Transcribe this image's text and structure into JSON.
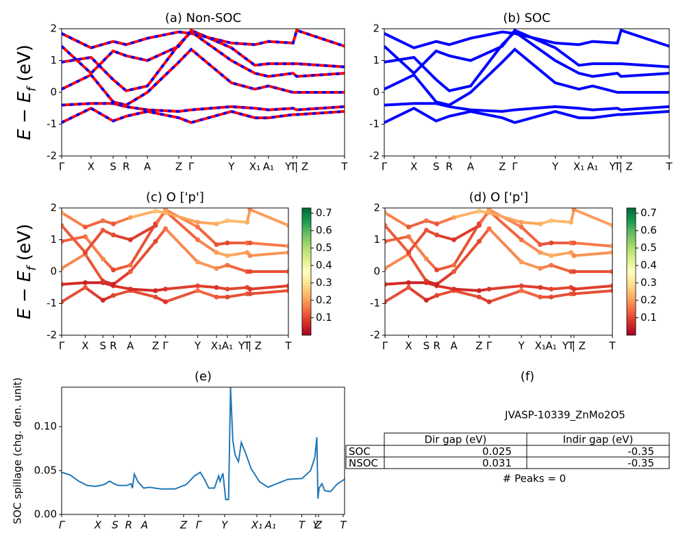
{
  "chart_data": [
    {
      "type": "line",
      "title": "(a) Non-SOC",
      "ylabel": [
        "E − E",
        "f",
        " (eV)"
      ],
      "color": "red",
      "dash_color": "blue",
      "xlim": [
        0,
        100
      ],
      "ylim": [
        -2,
        2
      ],
      "yticks": [
        -2,
        -1,
        0,
        1,
        2
      ],
      "xticks": [
        {
          "value": 0,
          "label": "Γ"
        },
        {
          "value": 10.4,
          "label": "X"
        },
        {
          "value": 18.2,
          "label": "S"
        },
        {
          "value": 22.8,
          "label": "R"
        },
        {
          "value": 30.3,
          "label": "A"
        },
        {
          "value": 41.4,
          "label": "Z"
        },
        {
          "value": 45.8,
          "label": "Γ"
        },
        {
          "value": 60.0,
          "label": "Y"
        },
        {
          "value": 68.3,
          "label": "X₁"
        },
        {
          "value": 73.1,
          "label": "A₁"
        },
        {
          "value": 81.8,
          "label": "T"
        },
        {
          "value": 83.1,
          "label": "Y | Z"
        },
        {
          "value": 100,
          "label": "T"
        }
      ],
      "x": [
        0,
        10.4,
        18.2,
        22.8,
        30.3,
        41.4,
        45.8,
        60.0,
        68.3,
        73.1,
        81.8,
        83.1,
        100
      ],
      "series": [
        {
          "values": [
            -0.95,
            -0.5,
            -0.9,
            -0.75,
            -0.6,
            -0.8,
            -0.95,
            -0.6,
            -0.8,
            -0.8,
            -0.7,
            -0.7,
            -0.6
          ]
        },
        {
          "values": [
            -0.4,
            -0.35,
            -0.35,
            -0.45,
            -0.55,
            -0.6,
            -0.55,
            -0.45,
            -0.5,
            -0.55,
            -0.5,
            -0.55,
            -0.45
          ]
        },
        {
          "values": [
            0.1,
            0.55,
            -0.3,
            -0.4,
            0.0,
            0.95,
            1.35,
            0.3,
            0.1,
            0.2,
            0.0,
            0.0,
            0.0
          ]
        },
        {
          "values": [
            0.95,
            1.1,
            0.4,
            0.05,
            0.2,
            1.5,
            1.9,
            1.0,
            0.6,
            0.5,
            0.6,
            0.5,
            0.6
          ]
        },
        {
          "values": [
            1.45,
            0.6,
            1.3,
            1.15,
            1.0,
            1.45,
            1.95,
            1.4,
            0.85,
            0.9,
            0.9,
            0.9,
            0.8
          ]
        },
        {
          "values": [
            1.85,
            1.4,
            1.6,
            1.5,
            1.7,
            1.9,
            1.85,
            1.55,
            1.5,
            1.6,
            1.55,
            1.95,
            1.45
          ]
        }
      ]
    },
    {
      "type": "line",
      "title": "(b) SOC",
      "color": "blue",
      "xlim": [
        0,
        100
      ],
      "ylim": [
        -2,
        2
      ],
      "yticks": [
        -2,
        -1,
        0,
        1,
        2
      ],
      "xticks": [
        {
          "value": 0,
          "label": "Γ"
        },
        {
          "value": 10.4,
          "label": "X"
        },
        {
          "value": 18.2,
          "label": "S"
        },
        {
          "value": 22.8,
          "label": "R"
        },
        {
          "value": 30.3,
          "label": "A"
        },
        {
          "value": 41.4,
          "label": "Z"
        },
        {
          "value": 45.8,
          "label": "Γ"
        },
        {
          "value": 60.0,
          "label": "Y"
        },
        {
          "value": 68.3,
          "label": "X₁"
        },
        {
          "value": 73.1,
          "label": "A₁"
        },
        {
          "value": 81.8,
          "label": "T"
        },
        {
          "value": 83.1,
          "label": "Y | Z"
        },
        {
          "value": 100,
          "label": "T"
        }
      ],
      "x": [
        0,
        10.4,
        18.2,
        22.8,
        30.3,
        41.4,
        45.8,
        60.0,
        68.3,
        73.1,
        81.8,
        83.1,
        100
      ],
      "series": [
        {
          "values": [
            -0.95,
            -0.5,
            -0.9,
            -0.75,
            -0.6,
            -0.8,
            -0.95,
            -0.6,
            -0.8,
            -0.8,
            -0.7,
            -0.7,
            -0.6
          ]
        },
        {
          "values": [
            -0.4,
            -0.35,
            -0.35,
            -0.45,
            -0.55,
            -0.6,
            -0.55,
            -0.45,
            -0.5,
            -0.55,
            -0.5,
            -0.55,
            -0.45
          ]
        },
        {
          "values": [
            0.1,
            0.55,
            -0.3,
            -0.4,
            0.0,
            0.95,
            1.35,
            0.3,
            0.1,
            0.2,
            0.0,
            0.0,
            0.0
          ]
        },
        {
          "values": [
            0.95,
            1.1,
            0.4,
            0.05,
            0.2,
            1.5,
            1.9,
            1.0,
            0.6,
            0.5,
            0.6,
            0.5,
            0.6
          ]
        },
        {
          "values": [
            1.45,
            0.6,
            1.3,
            1.15,
            1.0,
            1.45,
            1.95,
            1.4,
            0.85,
            0.9,
            0.9,
            0.9,
            0.8
          ]
        },
        {
          "values": [
            1.85,
            1.4,
            1.6,
            1.5,
            1.7,
            1.9,
            1.85,
            1.55,
            1.5,
            1.6,
            1.55,
            1.95,
            1.45
          ]
        }
      ]
    },
    {
      "type": "scatter",
      "title": "(c)  O ['p']",
      "ylabel": [
        "E − E",
        "f",
        " (eV)"
      ],
      "colormap": "RdYlGn",
      "clim": [
        0,
        0.73
      ],
      "cticks": [
        0.1,
        0.2,
        0.3,
        0.4,
        0.5,
        0.6,
        0.7
      ],
      "xlim": [
        0,
        100
      ],
      "ylim": [
        -2,
        2
      ],
      "yticks": [
        -2,
        -1,
        0,
        1,
        2
      ],
      "xticks": [
        {
          "value": 0,
          "label": "Γ"
        },
        {
          "value": 10.4,
          "label": "X"
        },
        {
          "value": 18.2,
          "label": "S"
        },
        {
          "value": 22.8,
          "label": "R"
        },
        {
          "value": 30.3,
          "label": "A"
        },
        {
          "value": 41.4,
          "label": "Z"
        },
        {
          "value": 45.8,
          "label": "Γ"
        },
        {
          "value": 60.0,
          "label": "Y"
        },
        {
          "value": 68.3,
          "label": "X₁"
        },
        {
          "value": 73.1,
          "label": "A₁"
        },
        {
          "value": 81.8,
          "label": "T"
        },
        {
          "value": 83.1,
          "label": "Y | Z"
        },
        {
          "value": 100,
          "label": "T"
        }
      ],
      "x": [
        0,
        10.4,
        18.2,
        22.8,
        30.3,
        41.4,
        45.8,
        60.0,
        68.3,
        73.1,
        81.8,
        83.1,
        100
      ],
      "series": [
        {
          "values": [
            -0.95,
            -0.5,
            -0.9,
            -0.75,
            -0.6,
            -0.8,
            -0.95,
            -0.6,
            -0.8,
            -0.8,
            -0.7,
            -0.7,
            -0.6
          ],
          "weights": [
            0.1,
            0.12,
            0.06,
            0.1,
            0.12,
            0.1,
            0.08,
            0.15,
            0.12,
            0.1,
            0.12,
            0.1,
            0.12
          ]
        },
        {
          "values": [
            -0.4,
            -0.35,
            -0.35,
            -0.45,
            -0.55,
            -0.6,
            -0.55,
            -0.45,
            -0.5,
            -0.55,
            -0.5,
            -0.55,
            -0.45
          ],
          "weights": [
            0.08,
            0.05,
            0.06,
            0.08,
            0.07,
            0.06,
            0.08,
            0.1,
            0.08,
            0.1,
            0.1,
            0.08,
            0.1
          ]
        },
        {
          "values": [
            0.1,
            0.55,
            -0.3,
            -0.4,
            0.0,
            0.95,
            1.35,
            0.3,
            0.1,
            0.2,
            0.0,
            0.0,
            0.0
          ],
          "weights": [
            0.2,
            0.15,
            0.08,
            0.05,
            0.12,
            0.1,
            0.15,
            0.2,
            0.18,
            0.15,
            0.12,
            0.1,
            0.12
          ]
        },
        {
          "values": [
            0.95,
            1.1,
            0.4,
            0.05,
            0.2,
            1.5,
            1.9,
            1.0,
            0.6,
            0.5,
            0.6,
            0.5,
            0.6
          ],
          "weights": [
            0.12,
            0.15,
            0.18,
            0.1,
            0.15,
            0.08,
            0.12,
            0.15,
            0.2,
            0.22,
            0.2,
            0.18,
            0.2
          ]
        },
        {
          "values": [
            1.45,
            0.6,
            1.3,
            1.15,
            1.0,
            1.45,
            1.95,
            1.4,
            0.85,
            0.9,
            0.9,
            0.9,
            0.8
          ],
          "weights": [
            0.15,
            0.1,
            0.12,
            0.1,
            0.08,
            0.1,
            0.2,
            0.15,
            0.12,
            0.1,
            0.15,
            0.12,
            0.2
          ]
        },
        {
          "values": [
            1.85,
            1.4,
            1.6,
            1.5,
            1.7,
            1.9,
            1.85,
            1.55,
            1.5,
            1.6,
            1.55,
            1.95,
            1.45
          ],
          "weights": [
            0.22,
            0.12,
            0.15,
            0.12,
            0.2,
            0.25,
            0.22,
            0.2,
            0.22,
            0.25,
            0.22,
            0.18,
            0.22
          ]
        }
      ]
    },
    {
      "type": "scatter",
      "title": "(d) O ['p']",
      "colormap": "RdYlGn",
      "clim": [
        0,
        0.73
      ],
      "cticks": [
        0.1,
        0.2,
        0.3,
        0.4,
        0.5,
        0.6,
        0.7
      ],
      "xlim": [
        0,
        100
      ],
      "ylim": [
        -2,
        2
      ],
      "yticks": [
        -2,
        -1,
        0,
        1,
        2
      ],
      "xticks": [
        {
          "value": 0,
          "label": "Γ"
        },
        {
          "value": 10.4,
          "label": "X"
        },
        {
          "value": 18.2,
          "label": "S"
        },
        {
          "value": 22.8,
          "label": "R"
        },
        {
          "value": 30.3,
          "label": "A"
        },
        {
          "value": 41.4,
          "label": "Z"
        },
        {
          "value": 45.8,
          "label": "Γ"
        },
        {
          "value": 60.0,
          "label": "Y"
        },
        {
          "value": 68.3,
          "label": "X₁"
        },
        {
          "value": 73.1,
          "label": "A₁"
        },
        {
          "value": 81.8,
          "label": "T"
        },
        {
          "value": 83.1,
          "label": "Y | Z"
        },
        {
          "value": 100,
          "label": "T"
        }
      ],
      "x": [
        0,
        10.4,
        18.2,
        22.8,
        30.3,
        41.4,
        45.8,
        60.0,
        68.3,
        73.1,
        81.8,
        83.1,
        100
      ],
      "series": [
        {
          "values": [
            -0.95,
            -0.5,
            -0.9,
            -0.75,
            -0.6,
            -0.8,
            -0.95,
            -0.6,
            -0.8,
            -0.8,
            -0.7,
            -0.7,
            -0.6
          ],
          "weights": [
            0.1,
            0.12,
            0.06,
            0.1,
            0.12,
            0.1,
            0.08,
            0.15,
            0.12,
            0.1,
            0.12,
            0.1,
            0.12
          ]
        },
        {
          "values": [
            -0.4,
            -0.35,
            -0.35,
            -0.45,
            -0.55,
            -0.6,
            -0.55,
            -0.45,
            -0.5,
            -0.55,
            -0.5,
            -0.55,
            -0.45
          ],
          "weights": [
            0.08,
            0.05,
            0.06,
            0.08,
            0.07,
            0.06,
            0.08,
            0.1,
            0.08,
            0.1,
            0.1,
            0.08,
            0.1
          ]
        },
        {
          "values": [
            0.1,
            0.55,
            -0.3,
            -0.4,
            0.0,
            0.95,
            1.35,
            0.3,
            0.1,
            0.2,
            0.0,
            0.0,
            0.0
          ],
          "weights": [
            0.2,
            0.15,
            0.08,
            0.05,
            0.12,
            0.1,
            0.15,
            0.2,
            0.18,
            0.15,
            0.12,
            0.1,
            0.12
          ]
        },
        {
          "values": [
            0.95,
            1.1,
            0.4,
            0.05,
            0.2,
            1.5,
            1.9,
            1.0,
            0.6,
            0.5,
            0.6,
            0.5,
            0.6
          ],
          "weights": [
            0.12,
            0.15,
            0.18,
            0.1,
            0.15,
            0.08,
            0.12,
            0.15,
            0.2,
            0.22,
            0.2,
            0.18,
            0.2
          ]
        },
        {
          "values": [
            1.45,
            0.6,
            1.3,
            1.15,
            1.0,
            1.45,
            1.95,
            1.4,
            0.85,
            0.9,
            0.9,
            0.9,
            0.8
          ],
          "weights": [
            0.15,
            0.1,
            0.12,
            0.1,
            0.08,
            0.1,
            0.2,
            0.15,
            0.12,
            0.1,
            0.15,
            0.12,
            0.2
          ]
        },
        {
          "values": [
            1.85,
            1.4,
            1.6,
            1.5,
            1.7,
            1.9,
            1.85,
            1.55,
            1.5,
            1.6,
            1.55,
            1.95,
            1.45
          ],
          "weights": [
            0.22,
            0.12,
            0.15,
            0.12,
            0.2,
            0.25,
            0.22,
            0.2,
            0.22,
            0.25,
            0.22,
            0.18,
            0.22
          ]
        }
      ]
    },
    {
      "type": "line",
      "title": "(e)",
      "ylabel": "SOC spillage (chg. den. unit)",
      "color": "#1f77b4",
      "italic_xticks": true,
      "xlim": [
        0,
        100
      ],
      "ylim": [
        0,
        0.145
      ],
      "yticks": [
        {
          "value": 0,
          "label": "0.00"
        },
        {
          "value": 0.05,
          "label": "0.05"
        },
        {
          "value": 0.1,
          "label": "0.10"
        }
      ],
      "xticks": [
        {
          "value": 0,
          "label": "Γ"
        },
        {
          "value": 12.8,
          "label": "X"
        },
        {
          "value": 18.9,
          "label": "S"
        },
        {
          "value": 23.7,
          "label": "R"
        },
        {
          "value": 29.3,
          "label": "A"
        },
        {
          "value": 43.1,
          "label": "Z"
        },
        {
          "value": 48.4,
          "label": "Γ"
        },
        {
          "value": 57.6,
          "label": "Y"
        },
        {
          "value": 69.0,
          "label": "X₁"
        },
        {
          "value": 73.8,
          "label": "A₁"
        },
        {
          "value": 84.9,
          "label": "T"
        },
        {
          "value": 89.8,
          "label": "Y"
        },
        {
          "value": 90.8,
          "label": "Z"
        },
        {
          "value": 99.5,
          "label": "T"
        }
      ],
      "x": [
        0,
        3,
        6,
        9,
        12,
        15,
        17,
        18.5,
        20,
        23,
        24.5,
        25,
        25.7,
        27,
        29,
        31,
        35,
        40,
        44,
        47,
        49,
        50.5,
        52,
        54,
        55.5,
        56,
        57,
        58,
        59,
        59.7,
        60.5,
        61.3,
        62.5,
        63.5,
        65,
        67,
        70,
        73,
        76,
        80,
        85,
        88,
        89.5,
        90.2,
        90.6,
        91,
        92,
        93,
        95,
        97.5,
        100
      ],
      "values": [
        0.048,
        0.045,
        0.038,
        0.033,
        0.032,
        0.034,
        0.038,
        0.035,
        0.033,
        0.033,
        0.035,
        0.03,
        0.046,
        0.037,
        0.03,
        0.031,
        0.029,
        0.029,
        0.034,
        0.044,
        0.048,
        0.04,
        0.03,
        0.03,
        0.044,
        0.038,
        0.047,
        0.017,
        0.017,
        0.145,
        0.085,
        0.068,
        0.06,
        0.082,
        0.07,
        0.052,
        0.037,
        0.031,
        0.035,
        0.04,
        0.041,
        0.05,
        0.065,
        0.088,
        0.018,
        0.03,
        0.035,
        0.027,
        0.026,
        0.035,
        0.04
      ]
    }
  ],
  "panel_f": {
    "title": "(f)",
    "subtitle": "JVASP-10339_ZnMo2O5",
    "columns": [
      "Dir gap (eV)",
      "Indir gap (eV)"
    ],
    "rows": [
      {
        "label": "SOC",
        "values": [
          0.025,
          -0.35
        ]
      },
      {
        "label": "NSOC",
        "values": [
          0.031,
          -0.35
        ]
      }
    ],
    "note": "# Peaks = 0"
  }
}
